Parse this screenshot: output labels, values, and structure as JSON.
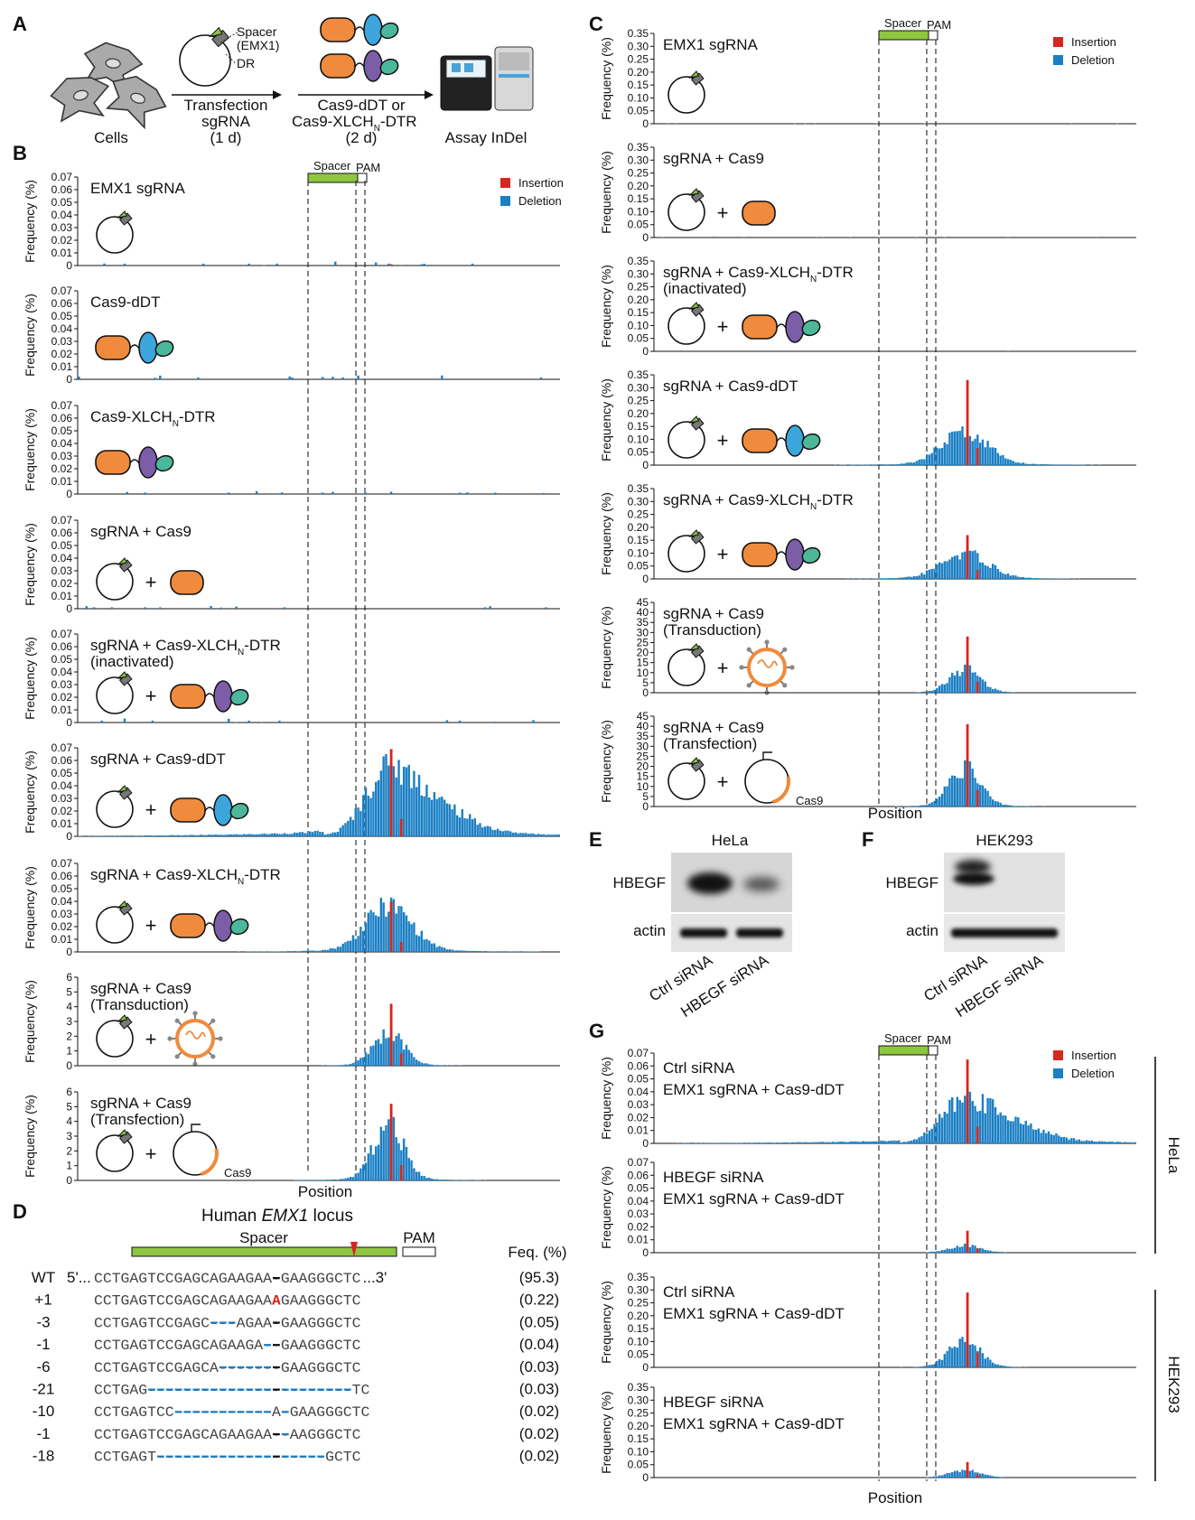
{
  "colors": {
    "insertion": "#d7261e",
    "deletion": "#1b7fc4",
    "spacer": "#8dc63f",
    "cas9": "#f08a3c",
    "dt_blue": "#3ca5dc",
    "dt_green": "#4bb89b",
    "xlch_purple": "#7b5ea7"
  },
  "panel_a": {
    "letter": "A",
    "cells_label": "Cells",
    "plasmid_labels": [
      "Spacer",
      "(EMX1)",
      "DR"
    ],
    "step1": [
      "Transfection",
      "sgRNA",
      "(1 d)"
    ],
    "step2": [
      "Cas9-dDT or",
      "Cas9-XLCH",
      "N",
      "-DTR",
      "(2 d)"
    ],
    "step3": "Assay InDel"
  },
  "legend": {
    "insertion": "Insertion",
    "deletion": "Deletion"
  },
  "shared": {
    "spacer": "Spacer",
    "pam": "PAM",
    "ylabel": "Frequency (%)",
    "xlabel": "Position",
    "cas9_plasmid": "Cas9",
    "plus": "+"
  },
  "panel_b": {
    "letter": "B",
    "ticks_small": [
      "0",
      "0.01",
      "0.02",
      "0.03",
      "0.04",
      "0.05",
      "0.06",
      "0.07"
    ],
    "ticks_large": [
      "0",
      "1",
      "2",
      "3",
      "4",
      "5",
      "6"
    ],
    "rows": [
      {
        "title": [
          "EMX1 sgRNA"
        ]
      },
      {
        "title": [
          "Cas9-dDT"
        ]
      },
      {
        "title": [
          "Cas9-XLCH",
          "N",
          "-DTR"
        ]
      },
      {
        "title": [
          "sgRNA + Cas9"
        ]
      },
      {
        "title": [
          "sgRNA + Cas9-XLCH",
          "N",
          "-DTR"
        ],
        "title2": "(inactivated)"
      },
      {
        "title": [
          "sgRNA + Cas9-dDT"
        ]
      },
      {
        "title": [
          "sgRNA + Cas9-XLCH",
          "N",
          "-DTR"
        ]
      },
      {
        "title": [
          "sgRNA + Cas9"
        ],
        "title2": "(Transduction)"
      },
      {
        "title": [
          "sgRNA + Cas9"
        ],
        "title2": "(Transfection)"
      }
    ]
  },
  "panel_c": {
    "letter": "C",
    "ticks_small": [
      "0",
      "0.05",
      "0.10",
      "0.15",
      "0.20",
      "0.25",
      "0.30",
      "0.35"
    ],
    "ticks_large": [
      "0",
      "5",
      "10",
      "15",
      "20",
      "25",
      "30",
      "35",
      "40",
      "45"
    ],
    "rows": [
      {
        "title": [
          "EMX1 sgRNA"
        ]
      },
      {
        "title": [
          "sgRNA + Cas9"
        ]
      },
      {
        "title": [
          "sgRNA + Cas9-XLCH",
          "N",
          "-DTR"
        ],
        "title2": "(inactivated)"
      },
      {
        "title": [
          "sgRNA + Cas9-dDT"
        ]
      },
      {
        "title": [
          "sgRNA + Cas9-XLCH",
          "N",
          "-DTR"
        ]
      },
      {
        "title": [
          "sgRNA + Cas9"
        ],
        "title2": "(Transduction)"
      },
      {
        "title": [
          "sgRNA + Cas9"
        ],
        "title2": "(Transfection)"
      }
    ]
  },
  "panel_d": {
    "letter": "D",
    "title_pre": "Human ",
    "title_gene": "EMX1",
    "title_post": " locus",
    "freq_header": "Feq. (%)",
    "rows": [
      {
        "label": "WT",
        "prefix": "5'...",
        "seq": "CCTGAGTCCGAGCAGAAGAA-GAAGGGCTC",
        "suffix": "...3'",
        "freq": "(95.3)"
      },
      {
        "label": "+1",
        "prefix": "",
        "seq": "CCTGAGTCCGAGCAGAAGAAAGAAGGGCTC",
        "suffix": "",
        "freq": "(0.22)"
      },
      {
        "label": "-3",
        "prefix": "",
        "seq": "CCTGAGTCCGAGC---AGAA-GAAGGGCTC",
        "suffix": "",
        "freq": "(0.05)"
      },
      {
        "label": "-1",
        "prefix": "",
        "seq": "CCTGAGTCCGAGCAGAAGA--GAAGGGCTC",
        "suffix": "",
        "freq": "(0.04)"
      },
      {
        "label": "-6",
        "prefix": "",
        "seq": "CCTGAGTCCGAGCA-------GAAGGGCTC",
        "suffix": "",
        "freq": "(0.03)"
      },
      {
        "label": "-21",
        "prefix": "",
        "seq": "CCTGAG-----------------------TC",
        "suffix": "",
        "freq": "(0.03)"
      },
      {
        "label": "-10",
        "prefix": "",
        "seq": "CCTGAGTCC-----------A-GAAGGGCTC",
        "suffix": "",
        "freq": "(0.02)"
      },
      {
        "label": "-1",
        "prefix": "",
        "seq": "CCTGAGTCCGAGCAGAAGAA--AAGGGCTC",
        "suffix": "",
        "freq": "(0.02)"
      },
      {
        "label": "-18",
        "prefix": "",
        "seq": "CCTGAGT-------------------GCTC",
        "suffix": "",
        "freq": "(0.02)"
      }
    ]
  },
  "panel_e": {
    "letter": "E",
    "cell_line": "HeLa",
    "band1": "HBEGF",
    "band2": "actin",
    "lanes": [
      "Ctrl siRNA",
      "HBEGF siRNA"
    ]
  },
  "panel_f": {
    "letter": "F",
    "cell_line": "HEK293",
    "band1": "HBEGF",
    "band2": "actin",
    "lanes": [
      "Ctrl siRNA",
      "HBEGF siRNA"
    ]
  },
  "panel_g": {
    "letter": "G",
    "ticks_small": [
      "0",
      "0.01",
      "0.02",
      "0.03",
      "0.04",
      "0.05",
      "0.06",
      "0.07"
    ],
    "ticks_large": [
      "0",
      "0.05",
      "0.10",
      "0.15",
      "0.20",
      "0.25",
      "0.30",
      "0.35"
    ],
    "group_hela": "HeLa",
    "group_hek": "HEK293",
    "rows": [
      {
        "title": [
          "Ctrl siRNA"
        ],
        "title2": "EMX1 sgRNA + Cas9-dDT"
      },
      {
        "title": [
          "HBEGF siRNA"
        ],
        "title2": "EMX1 sgRNA + Cas9-dDT"
      },
      {
        "title": [
          "Ctrl siRNA"
        ],
        "title2": "EMX1 sgRNA + Cas9-dDT"
      },
      {
        "title": [
          "HBEGF siRNA"
        ],
        "title2": "EMX1 sgRNA + Cas9-dDT"
      }
    ]
  },
  "chart_data": [
    {
      "type": "bar",
      "panel": "B",
      "ylim": [
        0,
        0.07
      ],
      "ylabel": "Frequency (%)",
      "xlabel": "Position",
      "series": [
        {
          "name": "EMX1 sgRNA",
          "peak_deletion": 0.004,
          "peak_insertion": 0.001
        },
        {
          "name": "Cas9-dDT",
          "peak_deletion": 0.004,
          "peak_insertion": 0
        },
        {
          "name": "Cas9-XLCHN-DTR",
          "peak_deletion": 0.003,
          "peak_insertion": 0
        },
        {
          "name": "sgRNA + Cas9",
          "peak_deletion": 0.003,
          "peak_insertion": 0
        },
        {
          "name": "sgRNA + Cas9-XLCHN-DTR (inactivated)",
          "peak_deletion": 0.004,
          "peak_insertion": 0
        },
        {
          "name": "sgRNA + Cas9-dDT",
          "peak_deletion": 0.065,
          "peak_insertion": 0.069
        },
        {
          "name": "sgRNA + Cas9-XLCHN-DTR",
          "peak_deletion": 0.043,
          "peak_insertion": 0.04
        }
      ]
    },
    {
      "type": "bar",
      "panel": "B",
      "ylim": [
        0,
        6
      ],
      "ylabel": "Frequency (%)",
      "xlabel": "Position",
      "series": [
        {
          "name": "sgRNA + Cas9 (Transduction)",
          "peak_deletion": 2.6,
          "peak_insertion": 4.2
        },
        {
          "name": "sgRNA + Cas9 (Transfection)",
          "peak_deletion": 4.3,
          "peak_insertion": 5.2
        }
      ]
    },
    {
      "type": "bar",
      "panel": "C",
      "ylim": [
        0,
        0.35
      ],
      "ylabel": "Frequency (%)",
      "xlabel": "Position",
      "series": [
        {
          "name": "EMX1 sgRNA",
          "peak_deletion": 0.004,
          "peak_insertion": 0
        },
        {
          "name": "sgRNA + Cas9",
          "peak_deletion": 0.004,
          "peak_insertion": 0
        },
        {
          "name": "sgRNA + Cas9-XLCHN-DTR (inactivated)",
          "peak_deletion": 0.003,
          "peak_insertion": 0
        },
        {
          "name": "sgRNA + Cas9-dDT",
          "peak_deletion": 0.15,
          "peak_insertion": 0.33
        },
        {
          "name": "sgRNA + Cas9-XLCHN-DTR",
          "peak_deletion": 0.12,
          "peak_insertion": 0.17
        }
      ]
    },
    {
      "type": "bar",
      "panel": "C",
      "ylim": [
        0,
        45
      ],
      "ylabel": "Frequency (%)",
      "xlabel": "Position",
      "series": [
        {
          "name": "sgRNA + Cas9 (Transduction)",
          "peak_deletion": 14,
          "peak_insertion": 28
        },
        {
          "name": "sgRNA + Cas9 (Transfection)",
          "peak_deletion": 23,
          "peak_insertion": 41
        }
      ]
    },
    {
      "type": "bar",
      "panel": "G",
      "ylim": [
        0,
        0.07
      ],
      "ylabel": "Frequency (%)",
      "xlabel": "Position",
      "series": [
        {
          "name": "HeLa Ctrl siRNA",
          "peak_deletion": 0.04,
          "peak_insertion": 0.065
        },
        {
          "name": "HeLa HBEGF siRNA",
          "peak_deletion": 0.007,
          "peak_insertion": 0.017
        }
      ]
    },
    {
      "type": "bar",
      "panel": "G",
      "ylim": [
        0,
        0.35
      ],
      "ylabel": "Frequency (%)",
      "xlabel": "Position",
      "series": [
        {
          "name": "HEK293 Ctrl siRNA",
          "peak_deletion": 0.12,
          "peak_insertion": 0.29
        },
        {
          "name": "HEK293 HBEGF siRNA",
          "peak_deletion": 0.03,
          "peak_insertion": 0.06
        }
      ]
    }
  ]
}
